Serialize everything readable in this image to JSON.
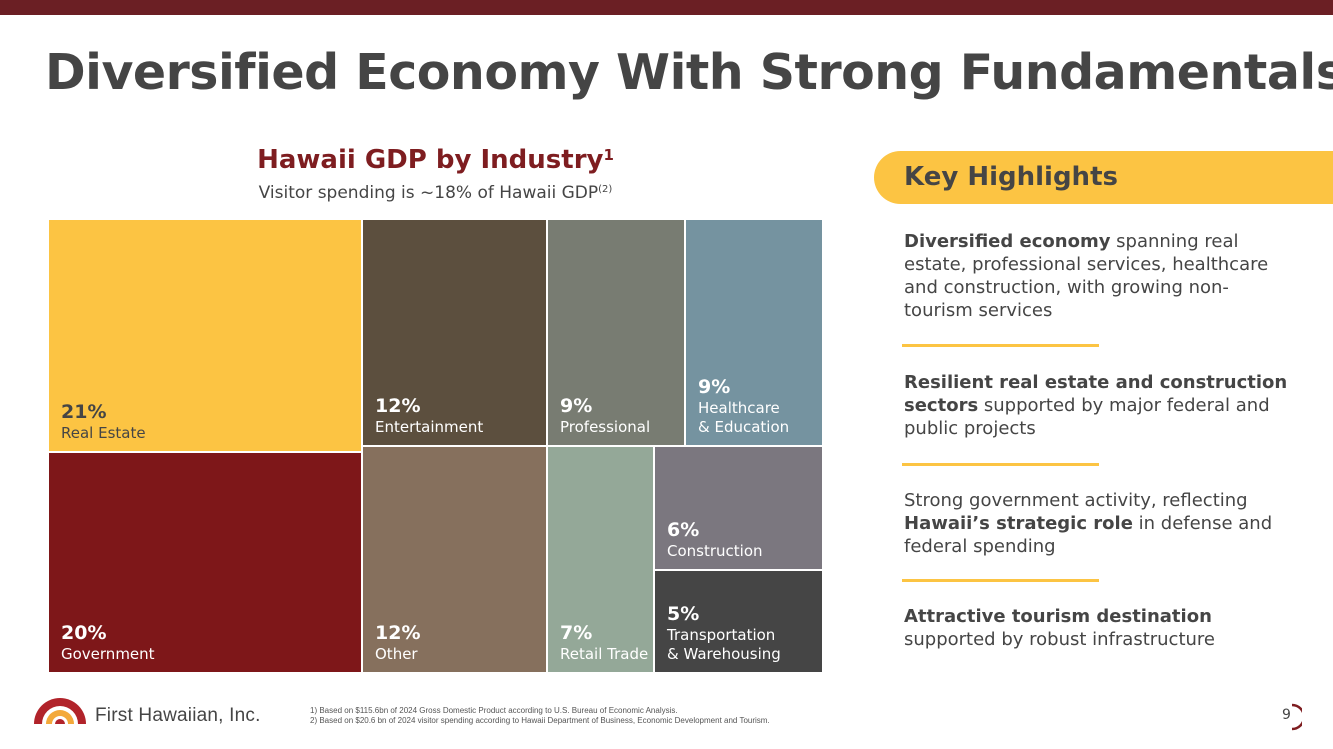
{
  "slide": {
    "title": "Diversified Economy With Strong Fundamentals",
    "page_number": "9"
  },
  "chart_data": {
    "type": "treemap",
    "title": "Hawaii GDP by Industry",
    "title_footnote": "1",
    "subtitle": "Visitor spending is ~18% of Hawaii GDP",
    "subtitle_footnote": "(2)",
    "unit": "%",
    "items": [
      {
        "label": "Real Estate",
        "value": 21,
        "color": "#fcc443"
      },
      {
        "label": "Government",
        "value": 20,
        "color": "#7e1719"
      },
      {
        "label": "Entertainment",
        "value": 12,
        "color": "#5c4f3e"
      },
      {
        "label": "Other",
        "value": 12,
        "color": "#86705d"
      },
      {
        "label": "Professional",
        "value": 9,
        "color": "#787c72"
      },
      {
        "label": "Healthcare & Education",
        "value": 9,
        "color": "#7593a0"
      },
      {
        "label": "Retail Trade",
        "value": 7,
        "color": "#94a898"
      },
      {
        "label": "Construction",
        "value": 6,
        "color": "#7b777f"
      },
      {
        "label": "Transportation & Warehousing",
        "value": 5,
        "color": "#454545"
      }
    ]
  },
  "highlights": {
    "title": "Key Highlights",
    "items": [
      {
        "bold": "Diversified economy",
        "text": " spanning real estate, professional services, healthcare and construction, with growing non-tourism services"
      },
      {
        "bold": "Resilient real estate and construction sectors",
        "text": " supported by major federal and public projects"
      },
      {
        "pre": "Strong government activity, reflecting ",
        "bold": "Hawaii’s strategic role",
        "text": " in defense and federal spending"
      },
      {
        "bold": "Attractive tourism destination",
        "text": " supported by robust infrastructure"
      }
    ]
  },
  "footer": {
    "brand": "First Hawaiian, Inc.",
    "footnote_1": "1) Based on $115.6bn of 2024 Gross Domestic Product according to U.S. Bureau of Economic Analysis.",
    "footnote_2": "2) Based on $20.6 bn of 2024 visitor spending according to Hawaii Department of Business, Economic Development and Tourism."
  },
  "colors": {
    "accent_yellow": "#fcc443",
    "brand_maroon": "#6b1f24",
    "title_red": "#7e1d20",
    "text_gray": "#454545"
  }
}
